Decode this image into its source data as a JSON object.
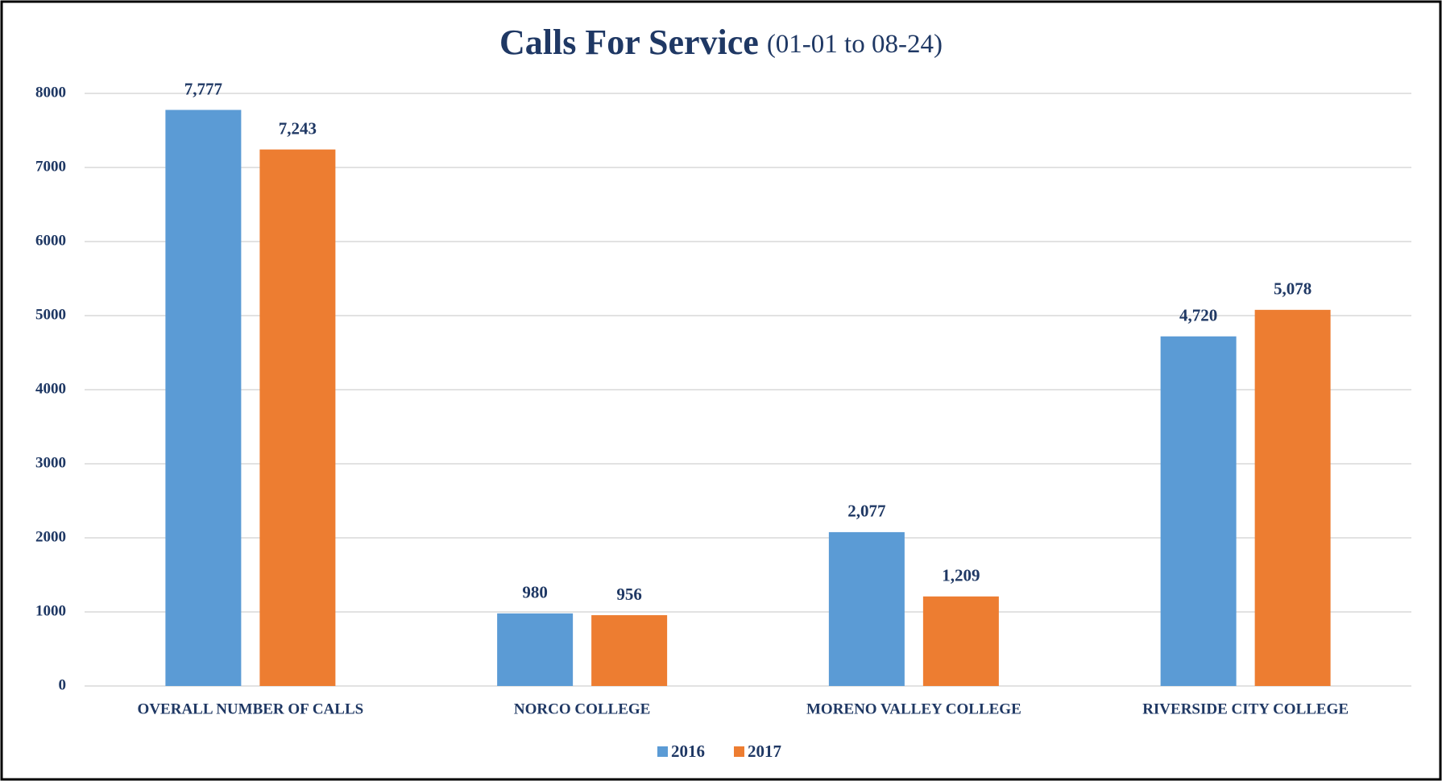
{
  "chart_data": {
    "type": "bar",
    "title": "Calls For Service",
    "subtitle": "(01-01 to 08-24)",
    "categories": [
      "OVERALL NUMBER OF CALLS",
      "NORCO COLLEGE",
      "MORENO VALLEY COLLEGE",
      "RIVERSIDE CITY COLLEGE"
    ],
    "series": [
      {
        "name": "2016",
        "color": "#5b9bd5",
        "values": [
          7777,
          980,
          2077,
          4720
        ],
        "value_labels": [
          "7,777",
          "980",
          "2,077",
          "4,720"
        ]
      },
      {
        "name": "2017",
        "color": "#ed7d31",
        "values": [
          7243,
          956,
          1209,
          5078
        ],
        "value_labels": [
          "7,243",
          "956",
          "1,209",
          "5,078"
        ]
      }
    ],
    "ylim": [
      0,
      8000
    ],
    "yticks": [
      0,
      1000,
      2000,
      3000,
      4000,
      5000,
      6000,
      7000,
      8000
    ],
    "grid": true,
    "legend": "bottom"
  }
}
